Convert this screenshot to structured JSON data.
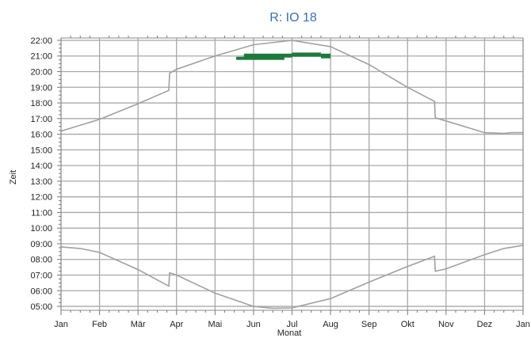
{
  "chart_data": {
    "type": "line",
    "title": "R: IO 18",
    "xlabel": "Monat",
    "ylabel": "Zeit",
    "x_ticks": [
      "Jan",
      "Feb",
      "Mär",
      "Apr",
      "Mai",
      "Jun",
      "Jul",
      "Aug",
      "Sep",
      "Okt",
      "Nov",
      "Dez",
      "Jan"
    ],
    "y_ticks": [
      "05:00",
      "06:00",
      "07:00",
      "08:00",
      "09:00",
      "10:00",
      "11:00",
      "12:00",
      "13:00",
      "14:00",
      "15:00",
      "16:00",
      "17:00",
      "18:00",
      "19:00",
      "20:00",
      "21:00",
      "22:00"
    ],
    "xlim": [
      0,
      12
    ],
    "ylim": [
      4.75,
      22.15
    ],
    "grid": true,
    "colors": {
      "curve": "#a0a0a0",
      "shadow": "#1e7a3c",
      "grid": "#a8a8a8",
      "title": "#3a6fb5"
    },
    "series": [
      {
        "points": [
          [
            0,
            16.2
          ],
          [
            1,
            16.95
          ],
          [
            2,
            17.95
          ],
          [
            2.8,
            18.8
          ],
          [
            2.82,
            19.9
          ],
          [
            3,
            20.15
          ],
          [
            4,
            21.0
          ],
          [
            5,
            21.72
          ],
          [
            6,
            22.0
          ],
          [
            7,
            21.6
          ],
          [
            8,
            20.45
          ],
          [
            9,
            19.0
          ],
          [
            9.7,
            18.1
          ],
          [
            9.72,
            17.05
          ],
          [
            10,
            16.85
          ],
          [
            11,
            16.1
          ],
          [
            11.5,
            16.05
          ],
          [
            11.7,
            16.1
          ],
          [
            12,
            16.1
          ]
        ]
      },
      {
        "points": [
          [
            0,
            8.8
          ],
          [
            0.5,
            8.7
          ],
          [
            1,
            8.45
          ],
          [
            2,
            7.35
          ],
          [
            2.8,
            6.3
          ],
          [
            2.82,
            7.15
          ],
          [
            3,
            7.0
          ],
          [
            4,
            5.85
          ],
          [
            5,
            5.0
          ],
          [
            5.5,
            4.88
          ],
          [
            6,
            4.9
          ],
          [
            7,
            5.5
          ],
          [
            8,
            6.55
          ],
          [
            9,
            7.55
          ],
          [
            9.7,
            8.2
          ],
          [
            9.72,
            7.25
          ],
          [
            10,
            7.4
          ],
          [
            11,
            8.3
          ],
          [
            11.5,
            8.7
          ],
          [
            12,
            8.9
          ]
        ]
      },
      {
        "style": "shadow",
        "intervals": [
          [
            4.55,
            5.8,
            20.75,
            20.95
          ],
          [
            4.75,
            6.0,
            20.9,
            21.15
          ],
          [
            6.0,
            6.75,
            20.95,
            21.22
          ],
          [
            6.75,
            7.0,
            20.85,
            21.15
          ]
        ]
      }
    ]
  }
}
